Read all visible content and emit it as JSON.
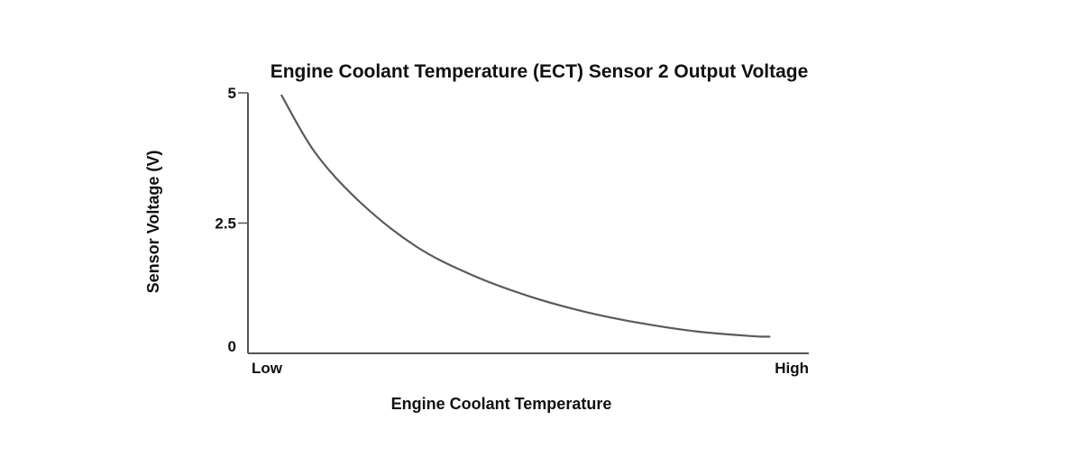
{
  "chart_data": {
    "type": "line",
    "title": "Engine Coolant Temperature (ECT) Sensor 2 Output Voltage",
    "xlabel": "Engine Coolant Temperature",
    "ylabel": "Sensor Voltage (V)",
    "x_tick_labels": [
      "Low",
      "High"
    ],
    "y_ticks": [
      {
        "value": 0,
        "label": "0"
      },
      {
        "value": 2.5,
        "label": "2.5"
      },
      {
        "value": 5,
        "label": "5"
      }
    ],
    "xlim": [
      0,
      1
    ],
    "ylim": [
      0,
      5
    ],
    "grid": false,
    "legend": "none",
    "line_color": "#5a5a5a",
    "series": [
      {
        "x": [
          0.06,
          0.12,
          0.2,
          0.3,
          0.4,
          0.5,
          0.6,
          0.7,
          0.8,
          0.9,
          0.93
        ],
        "y": [
          4.95,
          3.85,
          2.9,
          2.05,
          1.5,
          1.1,
          0.8,
          0.58,
          0.42,
          0.33,
          0.32
        ]
      }
    ]
  }
}
